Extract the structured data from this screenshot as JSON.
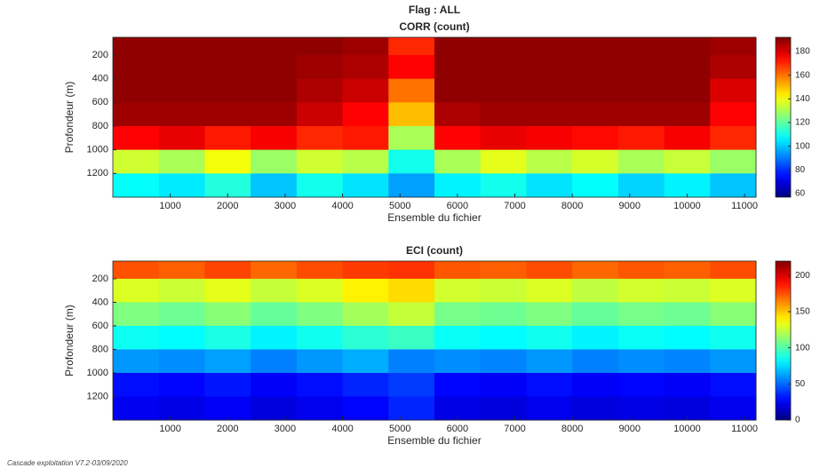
{
  "title": "Flag : ALL",
  "footer": "Cascade exploitation V7.2-03/09/2020",
  "chart_data": [
    {
      "type": "heatmap",
      "title": "CORR (count)",
      "xlabel": "Ensemble du fichier",
      "ylabel": "Profondeur (m)",
      "xlim": [
        0,
        11200
      ],
      "xticks": [
        1000,
        2000,
        3000,
        4000,
        5000,
        6000,
        7000,
        8000,
        9000,
        10000,
        11000
      ],
      "ylim": [
        50,
        1400
      ],
      "y_reversed": true,
      "yticks": [
        200,
        400,
        600,
        800,
        1000,
        1200
      ],
      "x_edges": [
        0,
        800,
        1600,
        2400,
        3200,
        4000,
        4800,
        5600,
        6400,
        7200,
        8000,
        8800,
        9600,
        10400,
        11200
      ],
      "y_edges": [
        50,
        200,
        400,
        600,
        800,
        1000,
        1200,
        1400
      ],
      "z": [
        [
          190,
          190,
          190,
          190,
          190,
          188,
          170,
          190,
          190,
          190,
          190,
          190,
          190,
          188
        ],
        [
          190,
          190,
          190,
          190,
          188,
          186,
          175,
          190,
          190,
          190,
          190,
          190,
          190,
          186
        ],
        [
          190,
          190,
          190,
          190,
          186,
          182,
          160,
          190,
          190,
          190,
          190,
          190,
          190,
          180
        ],
        [
          188,
          188,
          188,
          188,
          182,
          175,
          150,
          186,
          188,
          188,
          188,
          188,
          188,
          175
        ],
        [
          175,
          178,
          172,
          176,
          170,
          172,
          130,
          175,
          178,
          176,
          174,
          172,
          176,
          170
        ],
        [
          135,
          130,
          140,
          128,
          135,
          132,
          110,
          130,
          138,
          132,
          136,
          130,
          134,
          128
        ],
        [
          108,
          105,
          112,
          100,
          110,
          104,
          95,
          106,
          110,
          104,
          108,
          102,
          106,
          100
        ]
      ],
      "colormap": "jet",
      "clim": [
        57,
        192
      ],
      "cticks": [
        60,
        80,
        100,
        120,
        140,
        160,
        180
      ]
    },
    {
      "type": "heatmap",
      "title": "ECI (count)",
      "xlabel": "Ensemble du fichier",
      "ylabel": "Profondeur (m)",
      "xlim": [
        0,
        11200
      ],
      "xticks": [
        1000,
        2000,
        3000,
        4000,
        5000,
        6000,
        7000,
        8000,
        9000,
        10000,
        11000
      ],
      "ylim": [
        50,
        1400
      ],
      "y_reversed": true,
      "yticks": [
        200,
        400,
        600,
        800,
        1000,
        1200
      ],
      "x_edges": [
        0,
        800,
        1600,
        2400,
        3200,
        4000,
        4800,
        5600,
        6400,
        7200,
        8000,
        8800,
        9600,
        10400,
        11200
      ],
      "y_edges": [
        50,
        200,
        400,
        600,
        800,
        1000,
        1200,
        1400
      ],
      "z": [
        [
          175,
          172,
          178,
          170,
          176,
          180,
          182,
          174,
          172,
          176,
          170,
          174,
          172,
          176
        ],
        [
          130,
          126,
          132,
          125,
          130,
          140,
          145,
          128,
          126,
          130,
          124,
          128,
          126,
          130
        ],
        [
          110,
          106,
          112,
          104,
          110,
          118,
          125,
          108,
          106,
          110,
          104,
          108,
          106,
          112
        ],
        [
          85,
          82,
          88,
          80,
          86,
          92,
          95,
          84,
          82,
          86,
          80,
          84,
          82,
          86
        ],
        [
          60,
          58,
          62,
          55,
          60,
          65,
          55,
          58,
          56,
          60,
          55,
          58,
          56,
          60
        ],
        [
          30,
          28,
          32,
          26,
          30,
          35,
          40,
          28,
          26,
          30,
          26,
          28,
          26,
          30
        ],
        [
          25,
          22,
          26,
          20,
          24,
          28,
          35,
          22,
          20,
          24,
          20,
          22,
          20,
          24
        ]
      ],
      "colormap": "jet",
      "clim": [
        0,
        220
      ],
      "cticks": [
        0,
        50,
        100,
        150,
        200
      ]
    }
  ]
}
